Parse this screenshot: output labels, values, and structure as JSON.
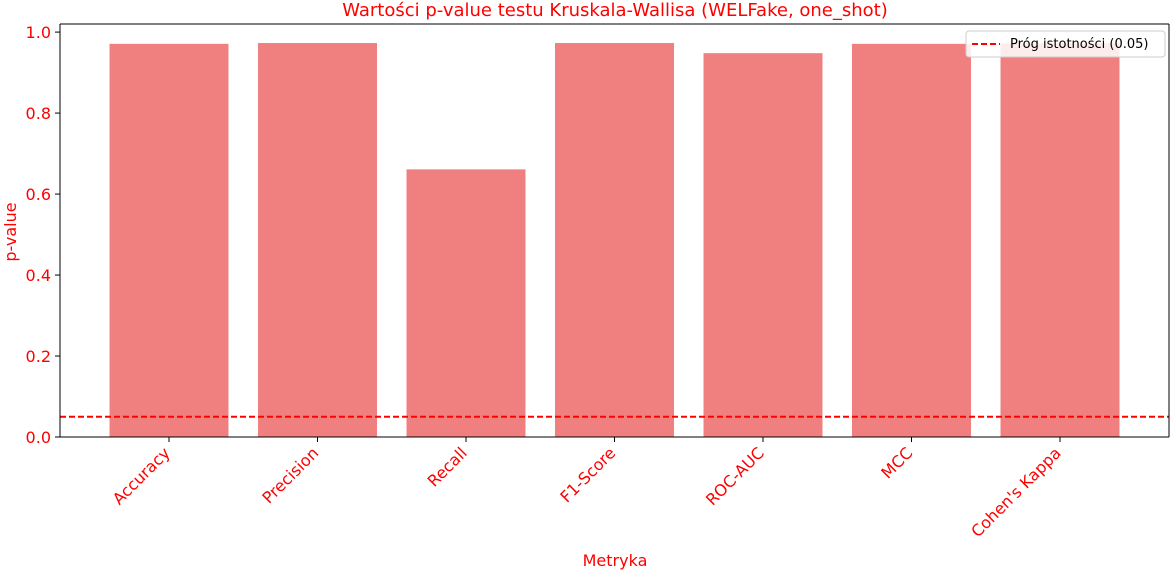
{
  "chart_data": {
    "type": "bar",
    "title": "Wartości p-value testu Kruskala-Wallisa (WELFake, one_shot)",
    "xlabel": "Metryka",
    "ylabel": "p-value",
    "categories": [
      "Accuracy",
      "Precision",
      "Recall",
      "F1-Score",
      "ROC-AUC",
      "MCC",
      "Cohen's Kappa"
    ],
    "values": [
      0.971,
      0.973,
      0.661,
      0.973,
      0.948,
      0.971,
      0.972
    ],
    "ylim": [
      0,
      1.02
    ],
    "yticks": [
      "0.0",
      "0.2",
      "0.4",
      "0.6",
      "0.8",
      "1.0"
    ],
    "threshold": {
      "value": 0.05,
      "label": "Próg istotności (0.05)",
      "color": "#ff0000",
      "style": "dashed"
    },
    "bar_color": "#f08080",
    "text_color": "#ff0000",
    "grid": false,
    "legend_position": "top-right"
  }
}
